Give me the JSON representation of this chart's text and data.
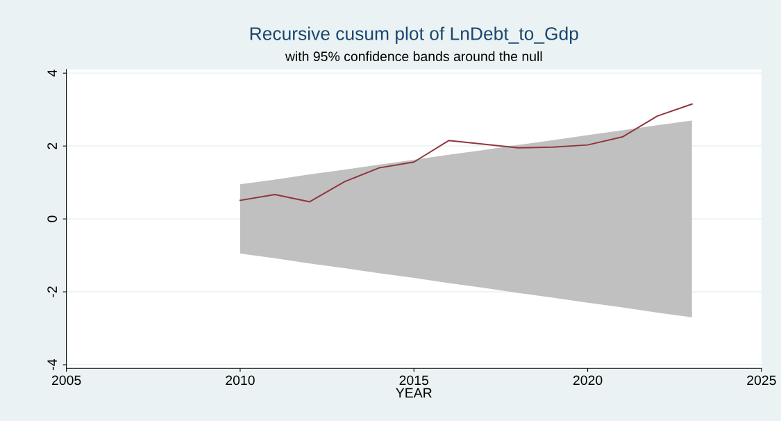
{
  "chart_data": {
    "type": "line",
    "title": "Recursive cusum plot of LnDebt_to_Gdp",
    "subtitle": "with 95% confidence bands around the null",
    "xlabel": "YEAR",
    "series": [
      {
        "color": "#90353b",
        "upper": [
          0.95,
          1.08,
          1.22,
          1.35,
          1.49,
          1.62,
          1.76,
          1.89,
          2.03,
          2.16,
          2.3,
          2.43,
          2.57,
          2.7
        ],
        "lower": [
          -0.95,
          -1.08,
          -1.22,
          -1.35,
          -1.49,
          -1.62,
          -1.76,
          -1.89,
          -2.03,
          -2.16,
          -2.3,
          -2.43,
          -2.57,
          -2.7
        ],
        "x": [
          2010,
          2011,
          2012,
          2013,
          2014,
          2015,
          2016,
          2017,
          2018,
          2019,
          2020,
          2021,
          2022,
          2023
        ],
        "values": [
          0.51,
          0.67,
          0.47,
          1.02,
          1.4,
          1.56,
          2.15,
          2.05,
          1.95,
          1.97,
          2.03,
          2.25,
          2.82,
          3.15
        ]
      }
    ],
    "xlim": [
      2005,
      2025
    ],
    "xticks": [
      2005,
      2010,
      2015,
      2020,
      2025
    ],
    "ylim": [
      -4.1,
      4.1
    ],
    "yticks": [
      -4,
      -2,
      0,
      2,
      4
    ],
    "grid": "y",
    "legend": false
  }
}
